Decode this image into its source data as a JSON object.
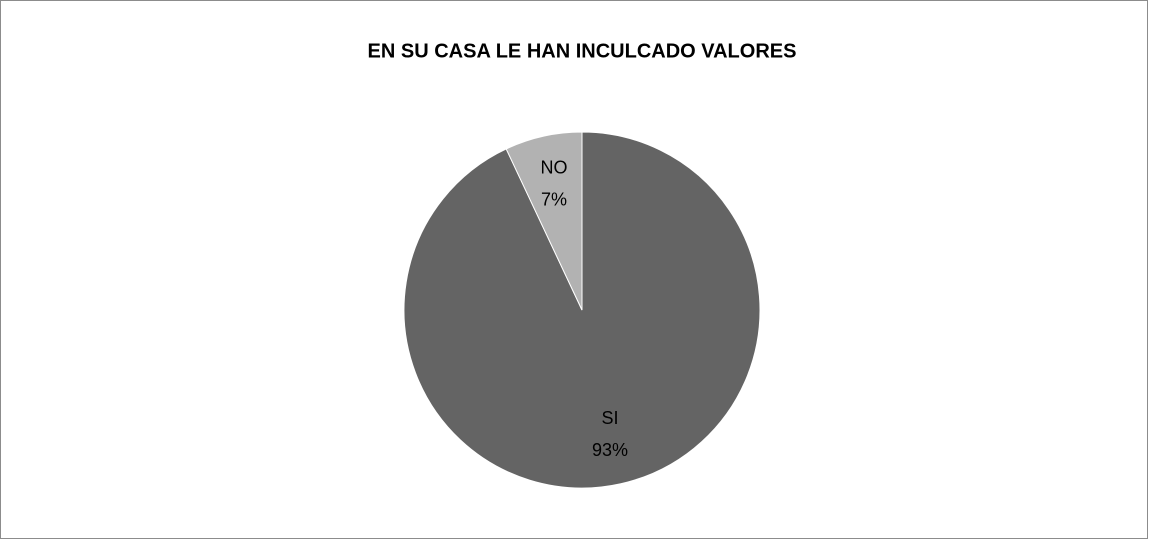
{
  "chart_data": {
    "type": "pie",
    "title": "EN SU CASA LE HAN INCULCADO VALORES",
    "categories": [
      "SI",
      "NO"
    ],
    "values": [
      93,
      7
    ],
    "value_labels": [
      "93%",
      "7%"
    ],
    "colors": [
      "#646464",
      "#b2b2b2"
    ]
  }
}
